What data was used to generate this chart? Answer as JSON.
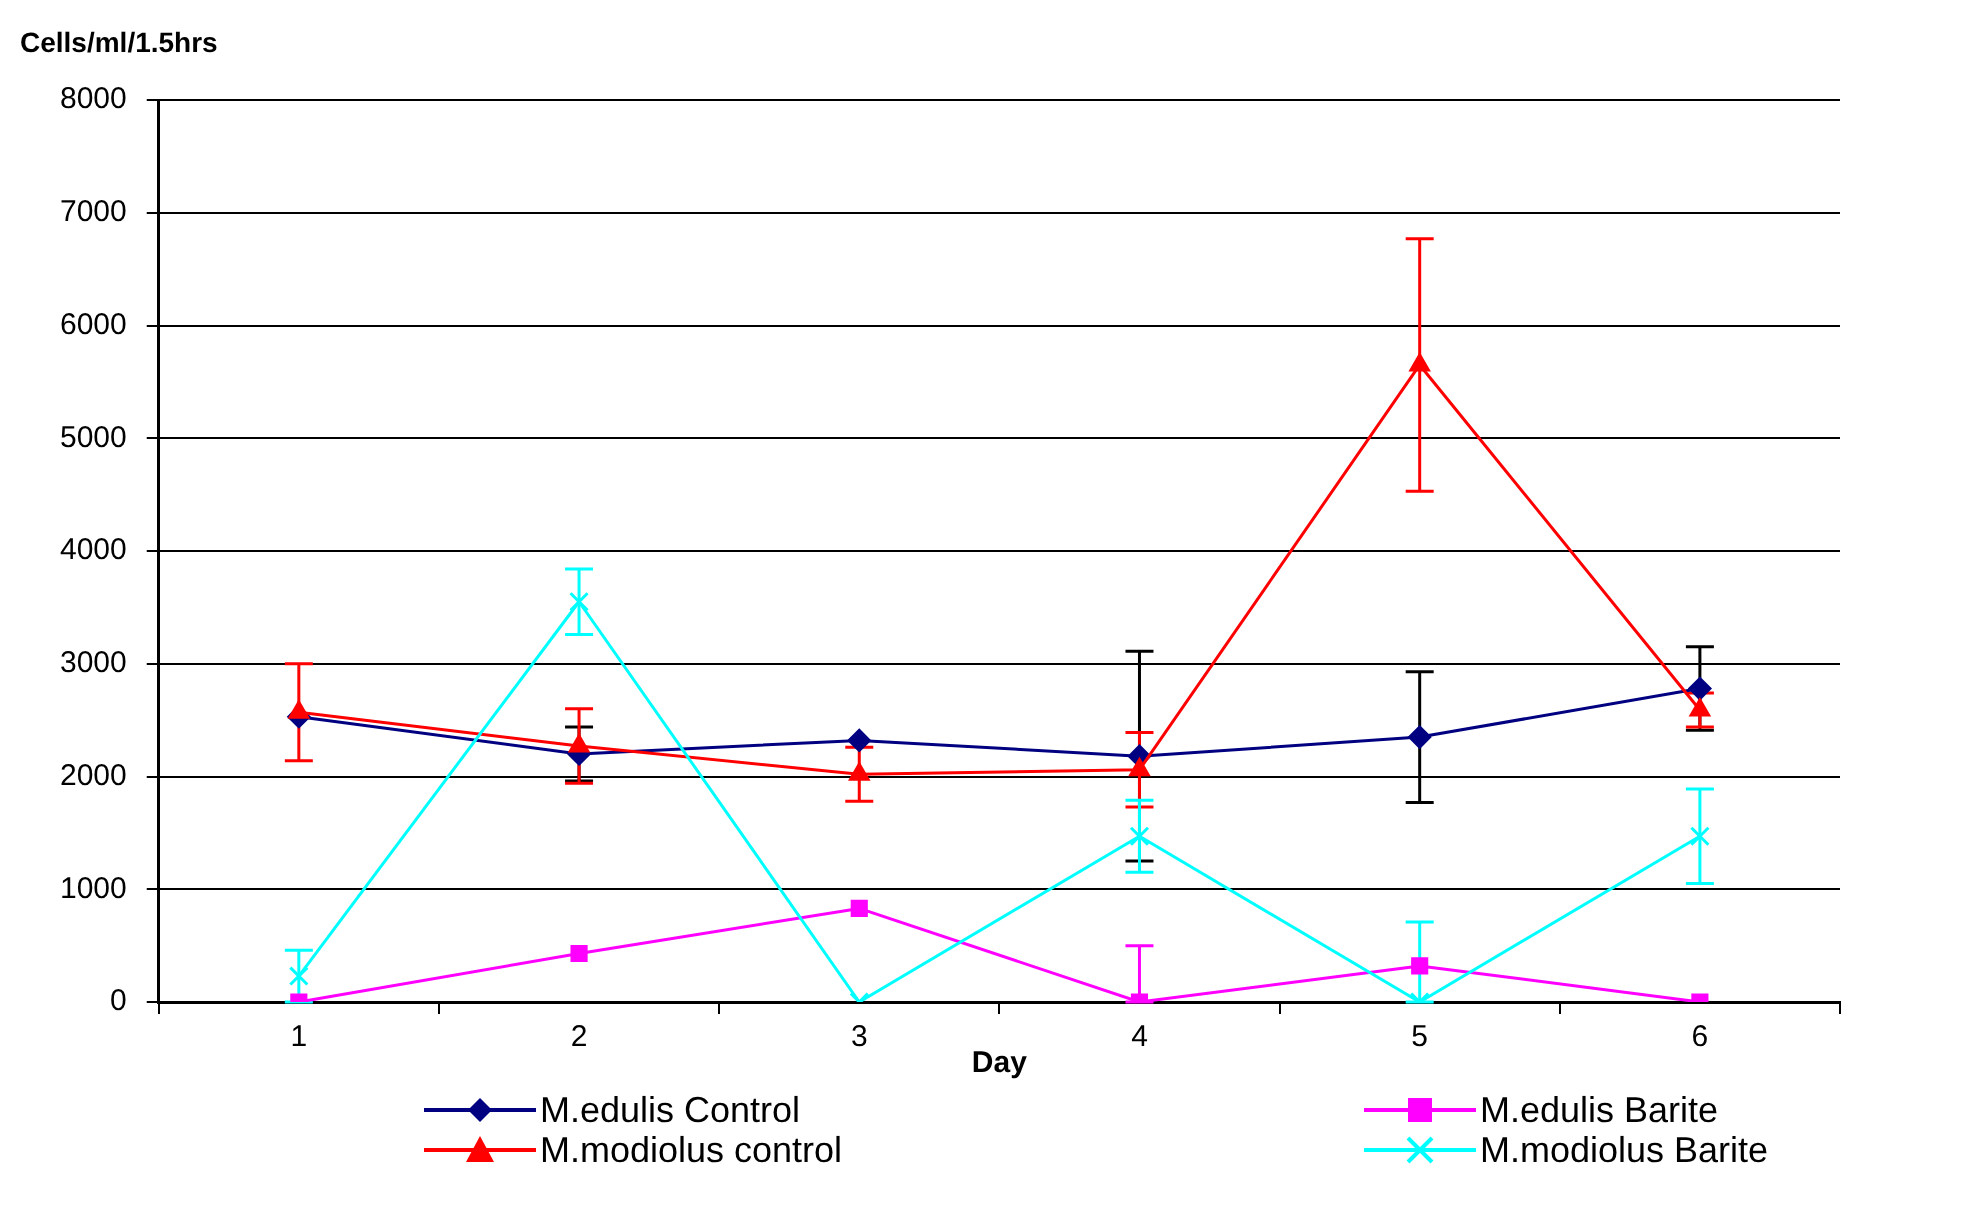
{
  "chart_data": {
    "type": "line",
    "xlabel": "Day",
    "ylabel": "Cells/ml/1.5hrs",
    "categories": [
      "1",
      "2",
      "3",
      "4",
      "5",
      "6"
    ],
    "series": [
      {
        "name": "M.edulis Control",
        "color": "#000080",
        "marker": "diamond",
        "values": [
          2530,
          2200,
          2320,
          2180,
          2350,
          2780
        ],
        "errors": [
          null,
          240,
          null,
          930,
          580,
          370
        ]
      },
      {
        "name": "M.modiolus control",
        "color": "#ff0000",
        "marker": "triangle",
        "values": [
          2570,
          2270,
          2020,
          2060,
          5650,
          2590
        ],
        "errors": [
          430,
          330,
          240,
          330,
          1120,
          150
        ]
      },
      {
        "name": "M.edulis Barite",
        "color": "#ff00ff",
        "marker": "square",
        "values": [
          0,
          430,
          830,
          0,
          320,
          0
        ],
        "errors": [
          null,
          null,
          null,
          [
            0,
            500
          ],
          null,
          null
        ]
      },
      {
        "name": "M.modiolus Barite",
        "color": "#00ffff",
        "marker": "cross",
        "values": [
          230,
          3550,
          0,
          1470,
          0,
          1470
        ],
        "errors": [
          230,
          290,
          null,
          320,
          [
            0,
            710
          ],
          420
        ]
      }
    ],
    "ylim": [
      0,
      8000
    ],
    "yticks": [
      0,
      1000,
      2000,
      3000,
      4000,
      5000,
      6000,
      7000,
      8000
    ],
    "grid": "y",
    "legend": "bottom"
  }
}
